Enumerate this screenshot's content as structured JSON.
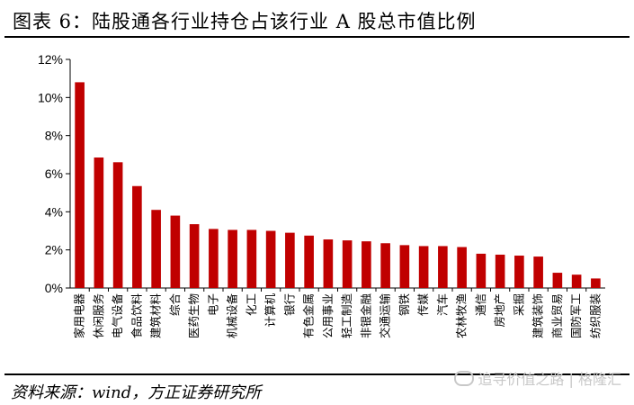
{
  "title": "图表 6：陆股通各行业持仓占该行业 A 股总市值比例",
  "source": "资料来源：wind，方正证券研究所",
  "watermark": "追寻价值之路 | 格隆汇",
  "bar_color": "#c00000",
  "chart_data": {
    "type": "bar",
    "title": "",
    "xlabel": "",
    "ylabel": "",
    "ylim": [
      0,
      12
    ],
    "yticks": [
      "0%",
      "2%",
      "4%",
      "6%",
      "8%",
      "10%",
      "12%"
    ],
    "grid": false,
    "legend": "none",
    "categories": [
      "家用电器",
      "休闲服务",
      "电气设备",
      "食品饮料",
      "建筑材料",
      "综合",
      "医药生物",
      "电子",
      "机械设备",
      "化工",
      "计算机",
      "银行",
      "有色金属",
      "公用事业",
      "轻工制造",
      "非银金融",
      "交通运输",
      "钢铁",
      "传媒",
      "汽车",
      "农林牧渔",
      "通信",
      "房地产",
      "采掘",
      "建筑装饰",
      "商业贸易",
      "国防军工",
      "纺织服装"
    ],
    "values": [
      10.8,
      6.85,
      6.6,
      5.35,
      4.1,
      3.8,
      3.35,
      3.1,
      3.05,
      3.05,
      3.0,
      2.9,
      2.75,
      2.55,
      2.5,
      2.45,
      2.35,
      2.25,
      2.2,
      2.2,
      2.15,
      1.8,
      1.75,
      1.7,
      1.65,
      0.8,
      0.7,
      0.5
    ]
  }
}
